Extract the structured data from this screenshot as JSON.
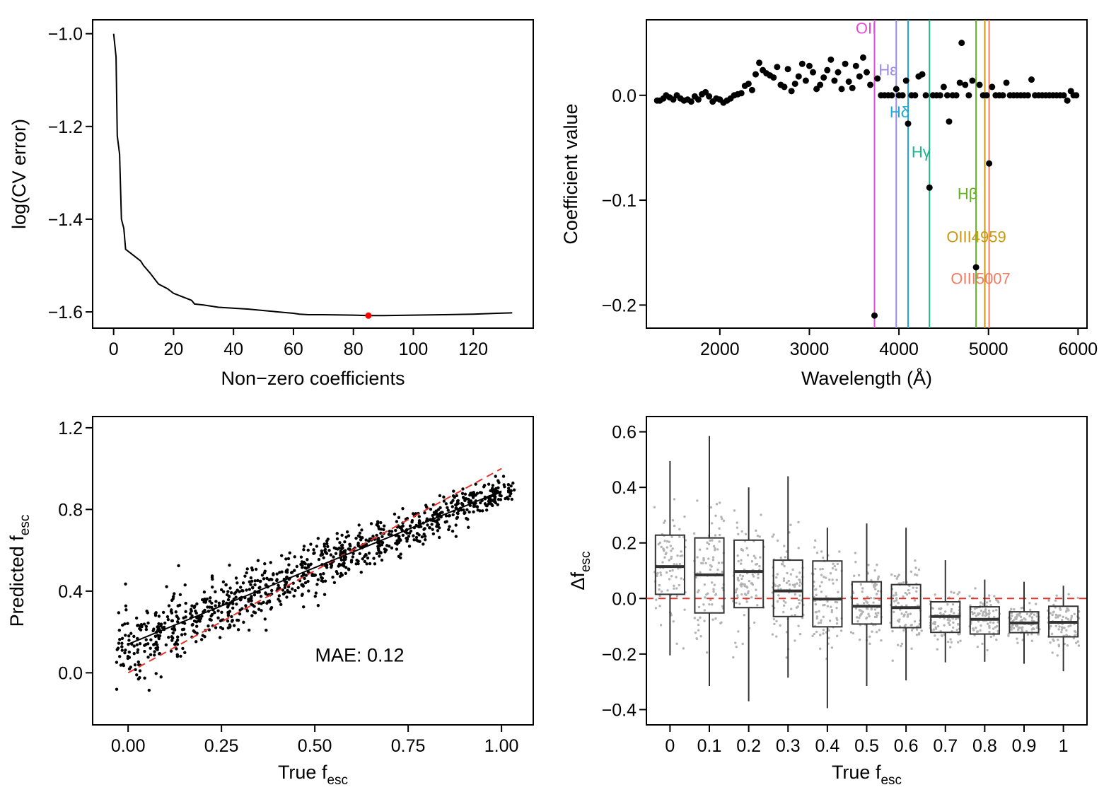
{
  "chart_data": [
    {
      "type": "line",
      "panel": "top-left",
      "xlabel": "Non−zero coefficients",
      "ylabel": "log(CV error)",
      "xlim": [
        -7,
        140
      ],
      "ylim": [
        -1.635,
        -0.97
      ],
      "xticks": [
        0,
        20,
        40,
        60,
        80,
        100,
        120
      ],
      "xtick_labels": [
        "0",
        "20",
        "40",
        "60",
        "80",
        "100",
        "120"
      ],
      "yticks": [
        -1.0,
        -1.2,
        -1.4,
        -1.6
      ],
      "ytick_labels": [
        "−1.0",
        "−1.2",
        "−1.4",
        "−1.6"
      ],
      "series": [
        {
          "x": [
            0,
            0.8,
            1.2,
            2,
            2.3,
            2.6,
            3,
            3.4,
            4,
            6,
            9,
            10,
            12,
            15,
            18,
            20,
            22,
            26,
            27,
            30,
            35,
            45,
            55,
            60,
            62,
            65,
            70,
            80,
            85,
            90,
            100,
            110,
            120,
            128,
            133
          ],
          "y": [
            -1.0,
            -1.05,
            -1.22,
            -1.26,
            -1.33,
            -1.4,
            -1.41,
            -1.42,
            -1.465,
            -1.475,
            -1.49,
            -1.5,
            -1.515,
            -1.54,
            -1.55,
            -1.56,
            -1.565,
            -1.575,
            -1.583,
            -1.585,
            -1.59,
            -1.594,
            -1.6,
            -1.603,
            -1.605,
            -1.606,
            -1.606,
            -1.607,
            -1.608,
            -1.608,
            -1.607,
            -1.606,
            -1.605,
            -1.603,
            -1.602
          ],
          "color": "#000000"
        }
      ],
      "highlight_point": {
        "x": 85,
        "y": -1.608,
        "color": "#ff0000"
      }
    },
    {
      "type": "scatter",
      "panel": "top-right",
      "xlabel": "Wavelength (Å)",
      "ylabel": "Coefficient value",
      "xlim": [
        1180,
        6100
      ],
      "ylim": [
        -0.222,
        0.072
      ],
      "xticks": [
        2000,
        3000,
        4000,
        5000,
        6000
      ],
      "xtick_labels": [
        "2000",
        "3000",
        "4000",
        "5000",
        "6000"
      ],
      "yticks": [
        0.0,
        -0.1,
        -0.2
      ],
      "ytick_labels": [
        "0.0",
        "−0.1",
        "−0.2"
      ],
      "vlines": [
        {
          "x": 3727,
          "label": "OII",
          "color": "#e64ad6",
          "label_y": 0.059
        },
        {
          "x": 3970,
          "label": "Hε",
          "color": "#9b8ae6",
          "label_y": 0.019
        },
        {
          "x": 4102,
          "label": "Hδ",
          "color": "#1ba8dc",
          "label_y": -0.021
        },
        {
          "x": 4341,
          "label": "Hγ",
          "color": "#1db58e",
          "label_y": -0.059
        },
        {
          "x": 4861,
          "label": "Hβ",
          "color": "#63b21f",
          "label_y": -0.099
        },
        {
          "x": 4959,
          "label": "OIII4959",
          "color": "#c99a10",
          "label_y": -0.14
        },
        {
          "x": 5007,
          "label": "OIII5007",
          "color": "#f07c63",
          "label_y": -0.18
        }
      ],
      "series": [
        {
          "name": "",
          "x": [
            1300,
            1330,
            1370,
            1400,
            1440,
            1480,
            1520,
            1560,
            1600,
            1640,
            1680,
            1720,
            1760,
            1800,
            1840,
            1880,
            1920,
            1960,
            2000,
            2040,
            2080,
            2120,
            2160,
            2200,
            2240,
            2280,
            2320,
            2360,
            2400,
            2440,
            2480,
            2520,
            2560,
            2600,
            2640,
            2680,
            2720,
            2760,
            2800,
            2840,
            2880,
            2920,
            2960,
            3000,
            3040,
            3080,
            3120,
            3160,
            3200,
            3240,
            3280,
            3320,
            3360,
            3400,
            3440,
            3480,
            3520,
            3560,
            3600,
            3640,
            3680,
            3727,
            3760,
            3800,
            3840,
            3880,
            3920,
            3970,
            4000,
            4040,
            4080,
            4102,
            4140,
            4180,
            4220,
            4260,
            4300,
            4341,
            4380,
            4420,
            4460,
            4500,
            4540,
            4560,
            4600,
            4640,
            4680,
            4700,
            4740,
            4780,
            4820,
            4861,
            4900,
            4940,
            4980,
            5007,
            5040,
            5080,
            5120,
            5160,
            5200,
            5240,
            5280,
            5320,
            5360,
            5400,
            5440,
            5480,
            5520,
            5560,
            5600,
            5640,
            5680,
            5720,
            5760,
            5800,
            5840,
            5880,
            5920,
            5950,
            5980
          ],
          "y": [
            -0.005,
            -0.005,
            -0.003,
            0.0,
            -0.002,
            -0.004,
            0.0,
            -0.003,
            -0.005,
            -0.004,
            -0.006,
            -0.001,
            -0.004,
            0.001,
            0.003,
            -0.001,
            -0.006,
            -0.003,
            -0.004,
            -0.007,
            -0.005,
            -0.003,
            0.0,
            0.001,
            0.002,
            0.009,
            0.011,
            0.005,
            0.02,
            0.031,
            0.024,
            0.021,
            0.019,
            0.017,
            0.027,
            0.01,
            0.008,
            0.025,
            0.004,
            0.011,
            0.018,
            0.03,
            0.014,
            0.028,
            0.022,
            0.006,
            0.01,
            0.017,
            0.024,
            0.034,
            0.014,
            0.022,
            0.006,
            0.03,
            0.013,
            0.007,
            0.028,
            0.018,
            0.036,
            0.022,
            0.01,
            -0.21,
            0.016,
            0.0,
            0.0,
            0.0,
            0.0,
            0.006,
            0.0,
            0.0,
            0.014,
            -0.027,
            0.0,
            0.0,
            0.018,
            0.02,
            0.0,
            -0.088,
            0.0,
            0.0,
            0.0,
            0.008,
            0.0,
            -0.025,
            0.0,
            0.0,
            0.012,
            0.05,
            0.01,
            0.0,
            0.014,
            -0.164,
            0.01,
            0.0,
            0.0,
            -0.065,
            0.008,
            0.0,
            0.0,
            0.0,
            0.012,
            0.0,
            0.0,
            0.0,
            0.0,
            0.0,
            0.0,
            0.015,
            0.0,
            0.0,
            0.0,
            0.0,
            0.0,
            0.0,
            0.0,
            0.0,
            0.0,
            -0.005,
            0.004,
            0.0,
            0.0
          ]
        }
      ]
    },
    {
      "type": "scatter",
      "panel": "bottom-left",
      "xlabel": "True f",
      "xlabel_sub": "esc",
      "ylabel": "Predicted f",
      "ylabel_sub": "esc",
      "xlim": [
        -0.095,
        1.085
      ],
      "ylim": [
        -0.255,
        1.255
      ],
      "xticks": [
        0.0,
        0.25,
        0.5,
        0.75,
        1.0
      ],
      "xtick_labels": [
        "0.00",
        "0.25",
        "0.50",
        "0.75",
        "1.00"
      ],
      "yticks": [
        0.0,
        0.4,
        0.8,
        1.2
      ],
      "ytick_labels": [
        "0.0",
        "0.4",
        "0.8",
        "1.2"
      ],
      "annotation": "MAE: 0.12",
      "identity_line": {
        "x": [
          0,
          1
        ],
        "y": [
          0,
          1
        ],
        "color": "#e8322a",
        "style": "dashed"
      },
      "fit_line": {
        "x": [
          0.0,
          1.0
        ],
        "y": [
          0.14,
          0.89
        ],
        "color": "#000000"
      },
      "n_points": 1000,
      "point_generation": "21 groups at x = 0, 0.05, …, 1.0 (jitter ±0.035); y ≈ 0.14 + 0.75·x with scatter shrinking from ±0.3 to ±0.1"
    },
    {
      "type": "box",
      "panel": "bottom-right",
      "xlabel": "True f",
      "xlabel_sub": "esc",
      "ylabel": "Δf",
      "ylabel_sub": "esc",
      "ylim": [
        -0.455,
        0.655
      ],
      "yticks": [
        0.6,
        0.4,
        0.2,
        0.0,
        -0.2,
        -0.4
      ],
      "ytick_labels": [
        "0.6",
        "0.4",
        "0.2",
        "0.0",
        "−0.2",
        "−0.4"
      ],
      "categories": [
        "0",
        "0.1",
        "0.2",
        "0.3",
        "0.4",
        "0.5",
        "0.6",
        "0.7",
        "0.8",
        "0.9",
        "1"
      ],
      "zero_line": {
        "y": 0.0,
        "color": "#e8322a",
        "style": "dashed"
      },
      "boxes": [
        {
          "category": "0",
          "whisker_low": -0.205,
          "q1": 0.015,
          "median": 0.115,
          "q3": 0.228,
          "whisker_high": 0.495
        },
        {
          "category": "0.1",
          "whisker_low": -0.315,
          "q1": -0.052,
          "median": 0.085,
          "q3": 0.218,
          "whisker_high": 0.585
        },
        {
          "category": "0.2",
          "whisker_low": -0.37,
          "q1": -0.033,
          "median": 0.097,
          "q3": 0.21,
          "whisker_high": 0.4
        },
        {
          "category": "0.3",
          "whisker_low": -0.285,
          "q1": -0.065,
          "median": 0.027,
          "q3": 0.138,
          "whisker_high": 0.44
        },
        {
          "category": "0.4",
          "whisker_low": -0.395,
          "q1": -0.102,
          "median": -0.002,
          "q3": 0.135,
          "whisker_high": 0.255
        },
        {
          "category": "0.5",
          "whisker_low": -0.315,
          "q1": -0.092,
          "median": -0.028,
          "q3": 0.06,
          "whisker_high": 0.27
        },
        {
          "category": "0.6",
          "whisker_low": -0.295,
          "q1": -0.105,
          "median": -0.033,
          "q3": 0.05,
          "whisker_high": 0.255
        },
        {
          "category": "0.7",
          "whisker_low": -0.23,
          "q1": -0.122,
          "median": -0.065,
          "q3": -0.012,
          "whisker_high": 0.138
        },
        {
          "category": "0.8",
          "whisker_low": -0.228,
          "q1": -0.128,
          "median": -0.075,
          "q3": -0.03,
          "whisker_high": 0.068
        },
        {
          "category": "0.9",
          "whisker_low": -0.235,
          "q1": -0.123,
          "median": -0.088,
          "q3": -0.048,
          "whisker_high": 0.06
        },
        {
          "category": "1",
          "whisker_low": -0.262,
          "q1": -0.138,
          "median": -0.086,
          "q3": -0.028,
          "whisker_high": 0.046
        }
      ],
      "points_color": "#b4b4b4"
    }
  ]
}
